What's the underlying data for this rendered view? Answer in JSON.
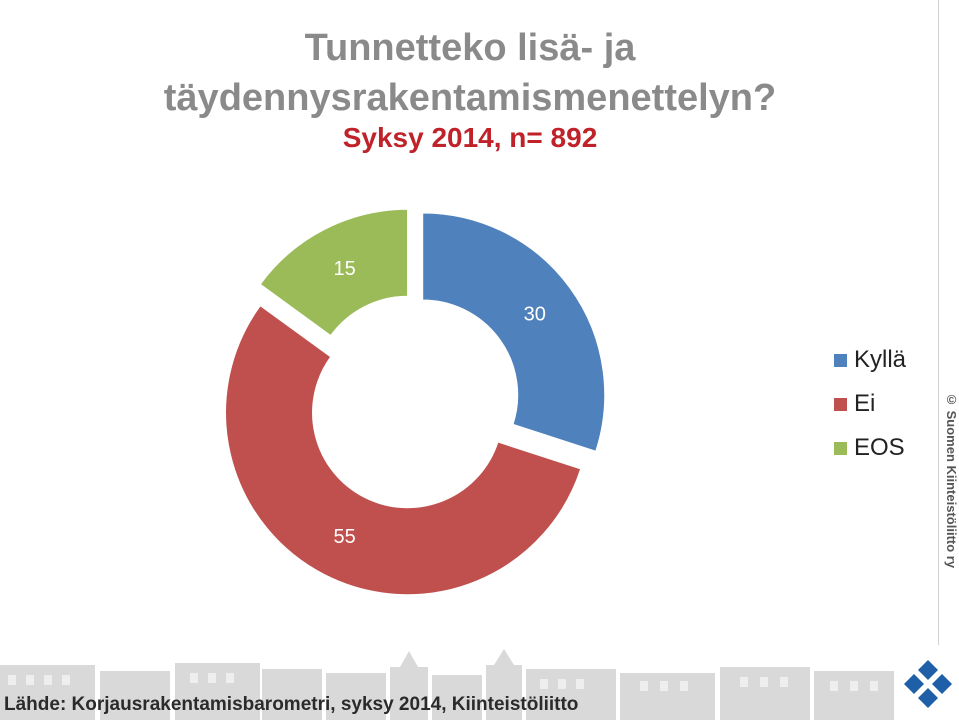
{
  "chart_data": {
    "type": "pie",
    "variant": "donut, exploded slices",
    "title_line1": "Tunnetteko lisä- ja",
    "title_line2": "täydennysrakentamismenettelyn?",
    "subtitle": "Syksy 2014, n= 892",
    "slices": [
      {
        "label": "Kyllä",
        "value": 30,
        "color": "#4f81bd"
      },
      {
        "label": "Ei",
        "value": 55,
        "color": "#c0504d"
      },
      {
        "label": "EOS",
        "value": 15,
        "color": "#9bbb59"
      }
    ],
    "legend_position": "right"
  },
  "copyright": "© Suomen Kiinteistöliitto ry",
  "footer": {
    "source": "Lähde: Korjausrakentamisbarometri, syksy 2014, Kiinteistöliitto"
  },
  "colors": {
    "title": "#8a8a8a",
    "subtitle": "#c0222a",
    "logo": "#1f5fa8"
  }
}
